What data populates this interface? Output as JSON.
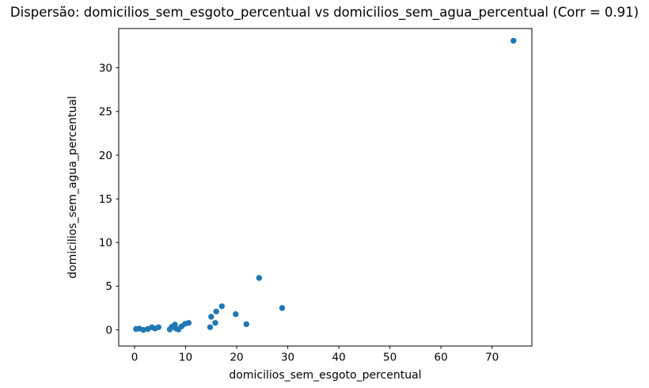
{
  "figure": {
    "background": "#ffffff"
  },
  "chart_data": {
    "type": "scatter",
    "title": "Dispersão: domicilios_sem_esgoto_percentual vs domicilios_sem_agua_percentual (Corr = 0.91)",
    "correlation": 0.91,
    "xlabel": "domicilios_sem_esgoto_percentual",
    "ylabel": "domicilios_sem_agua_percentual",
    "xlim": [
      -3.1,
      77.8
    ],
    "ylim": [
      -1.85,
      34.5
    ],
    "xticks": [
      0,
      10,
      20,
      30,
      40,
      50,
      60,
      70
    ],
    "yticks": [
      0,
      5,
      10,
      15,
      20,
      25,
      30
    ],
    "grid": false,
    "legend_position": "none",
    "marker_color": "#1f77b4",
    "spine_color": "#000000",
    "tick_label_color": "#000000",
    "points": [
      [
        0.3,
        0.1
      ],
      [
        0.9,
        0.15
      ],
      [
        1.7,
        0.0
      ],
      [
        2.6,
        0.1
      ],
      [
        3.4,
        0.3
      ],
      [
        4.0,
        0.15
      ],
      [
        4.7,
        0.3
      ],
      [
        6.9,
        0.05
      ],
      [
        7.3,
        0.35
      ],
      [
        7.9,
        0.6
      ],
      [
        8.1,
        0.15
      ],
      [
        8.6,
        0.05
      ],
      [
        9.2,
        0.4
      ],
      [
        9.9,
        0.7
      ],
      [
        10.6,
        0.8
      ],
      [
        14.8,
        0.3
      ],
      [
        15.0,
        1.5
      ],
      [
        15.8,
        0.8
      ],
      [
        16.0,
        2.1
      ],
      [
        17.1,
        2.7
      ],
      [
        19.8,
        1.8
      ],
      [
        21.9,
        0.65
      ],
      [
        24.4,
        5.95
      ],
      [
        28.9,
        2.5
      ],
      [
        74.2,
        33.1
      ]
    ]
  }
}
